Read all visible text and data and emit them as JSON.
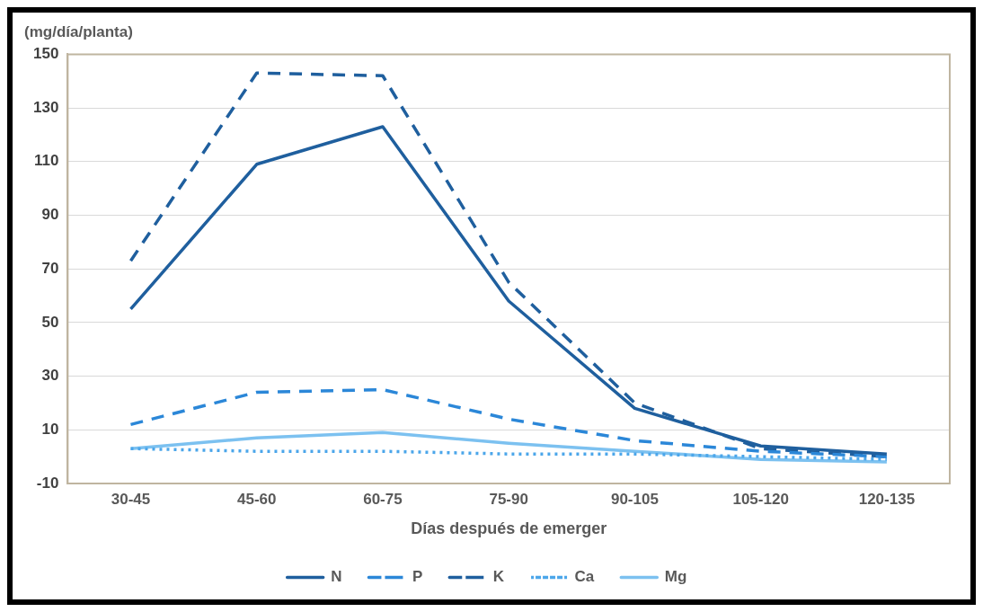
{
  "chart_data": {
    "type": "line",
    "ylabel": "(mg/día/planta)",
    "xlabel": "Días después de emerger",
    "categories": [
      "30-45",
      "45-60",
      "60-75",
      "75-90",
      "90-105",
      "105-120",
      "120-135"
    ],
    "series": [
      {
        "name": "N",
        "color": "#1f5f9e",
        "line_style": "solid",
        "values": [
          55,
          109,
          123,
          58,
          18,
          4,
          1
        ]
      },
      {
        "name": "P",
        "color": "#2b87d8",
        "line_style": "dashed",
        "values": [
          12,
          24,
          25,
          14,
          6,
          2,
          0
        ]
      },
      {
        "name": "K",
        "color": "#1f5f9e",
        "line_style": "dashed",
        "values": [
          73,
          143,
          142,
          65,
          20,
          3,
          0
        ]
      },
      {
        "name": "Ca",
        "color": "#4ba6ea",
        "line_style": "dotted",
        "values": [
          3,
          2,
          2,
          1,
          1,
          0,
          -1
        ]
      },
      {
        "name": "Mg",
        "color": "#7cc1f0",
        "line_style": "solid",
        "values": [
          3,
          7,
          9,
          5,
          2,
          -1,
          -2
        ]
      }
    ],
    "ylim": [
      -10,
      150
    ],
    "yticks": [
      -10,
      10,
      30,
      50,
      70,
      90,
      110,
      130,
      150
    ],
    "grid": "y",
    "legend": "bottom",
    "marker": "none"
  }
}
